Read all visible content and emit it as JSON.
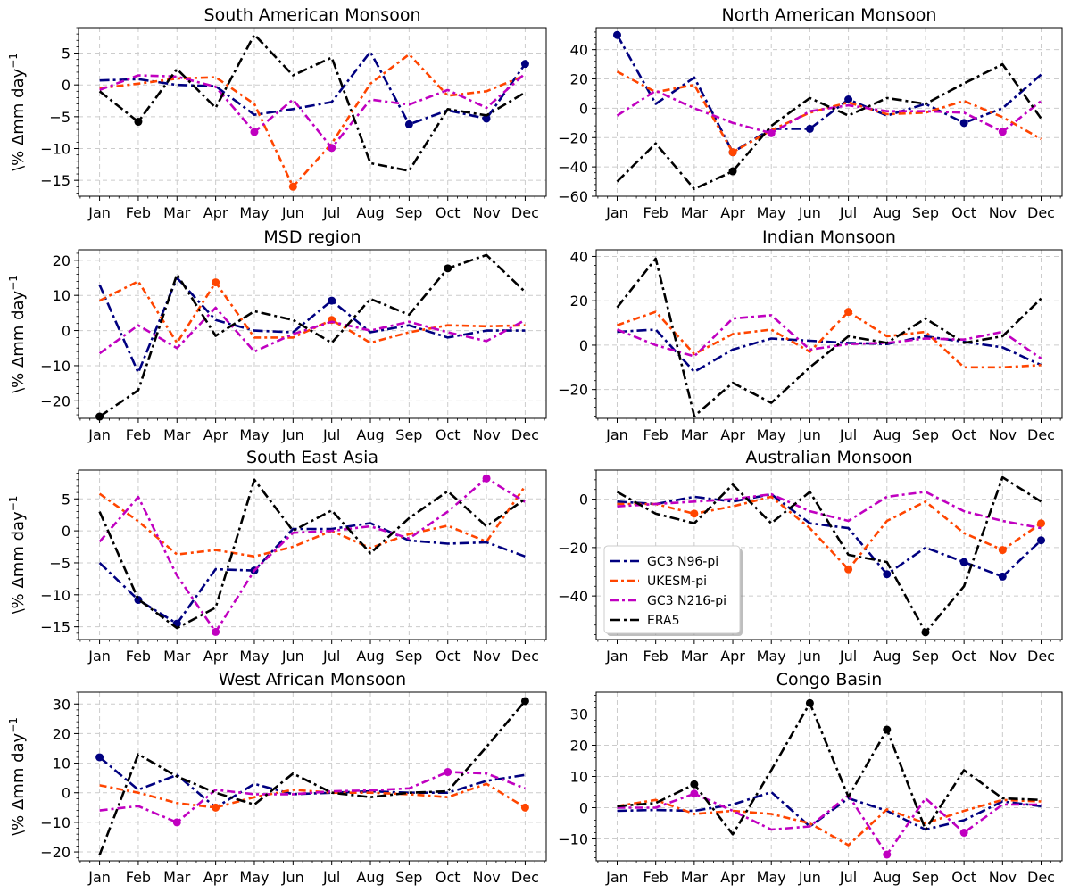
{
  "months": [
    "Jan",
    "Feb",
    "Mar",
    "Apr",
    "May",
    "Jun",
    "Jul",
    "Aug",
    "Sep",
    "Oct",
    "Nov",
    "Dec"
  ],
  "ylabel_prefix": "\\% Δmm day",
  "ylabel_sup": "−1",
  "legend": {
    "placement": "lower-left (Australian Monsoon panel)",
    "entries": [
      "GC3 N96-pi",
      "UKESM-pi",
      "GC3 N216-pi",
      "ERA5"
    ]
  },
  "colors": {
    "GC3 N96-pi": "#000080",
    "UKESM-pi": "#ff4500",
    "GC3 N216-pi": "#c000c0",
    "ERA5": "#000000"
  },
  "chart_data": [
    {
      "type": "line",
      "title": "South American Monsoon",
      "ylim": [
        -17.5,
        9
      ],
      "yticks": [
        -15,
        -10,
        -5,
        0,
        5
      ],
      "grid": true,
      "series": [
        {
          "name": "GC3 N96-pi",
          "values": [
            0.7,
            0.9,
            0,
            -0.2,
            -4.7,
            -3.8,
            -2.7,
            5.2,
            -6.2,
            -4,
            -5.3,
            3.3
          ],
          "markers": [
            8,
            10,
            11
          ]
        },
        {
          "name": "UKESM-pi",
          "values": [
            -0.5,
            0.2,
            1,
            1.2,
            -3,
            -16,
            -9.2,
            0.2,
            4.8,
            -1.7,
            -1,
            1.5
          ],
          "markers": [
            5
          ]
        },
        {
          "name": "GC3 N216-pi",
          "values": [
            -0.8,
            1.5,
            1.3,
            -0.3,
            -7.4,
            -2.3,
            -9.9,
            -2.3,
            -3.1,
            -0.8,
            -3.6,
            1.8
          ],
          "markers": [
            4,
            6
          ]
        },
        {
          "name": "ERA5",
          "values": [
            -1,
            -5.8,
            2.5,
            -3.6,
            7.9,
            1.5,
            4.3,
            -12.3,
            -13.5,
            -3.8,
            -4.8,
            -1.2
          ],
          "markers": [
            1
          ]
        }
      ]
    },
    {
      "type": "line",
      "title": "North American Monsoon",
      "ylim": [
        -60,
        55
      ],
      "yticks": [
        -60,
        -40,
        -20,
        0,
        20,
        40
      ],
      "grid": true,
      "series": [
        {
          "name": "GC3 N96-pi",
          "values": [
            50,
            3,
            21,
            -30,
            -14,
            -14,
            6,
            -5,
            3,
            -10,
            0,
            23
          ],
          "markers": [
            0,
            3,
            5,
            6,
            9
          ]
        },
        {
          "name": "UKESM-pi",
          "values": [
            25,
            11,
            16,
            -30,
            -15,
            -3,
            4,
            -4,
            -3,
            5,
            -6,
            -21
          ],
          "markers": [
            3
          ]
        },
        {
          "name": "GC3 N216-pi",
          "values": [
            -5,
            12,
            0,
            -10,
            -17,
            -2,
            2,
            -2,
            -2,
            -3,
            -16,
            5
          ],
          "markers": [
            4,
            10
          ]
        },
        {
          "name": "ERA5",
          "values": [
            -50,
            -24,
            -55,
            -43,
            -12,
            7,
            -5,
            7,
            3,
            17,
            30,
            -7
          ],
          "markers": [
            3
          ]
        }
      ]
    },
    {
      "type": "line",
      "title": "MSD region",
      "ylim": [
        -25,
        23
      ],
      "yticks": [
        -20,
        -10,
        0,
        10,
        20
      ],
      "grid": true,
      "series": [
        {
          "name": "GC3 N96-pi",
          "values": [
            13,
            -12,
            15,
            3,
            0,
            -0.5,
            8.5,
            -0.5,
            1.5,
            -2,
            0,
            0
          ],
          "markers": [
            6
          ]
        },
        {
          "name": "UKESM-pi",
          "values": [
            8.5,
            14,
            -3.5,
            13.7,
            -2,
            -2,
            3,
            -3.5,
            -0.5,
            1.5,
            1.2,
            1.5
          ],
          "markers": [
            3,
            6
          ]
        },
        {
          "name": "GC3 N216-pi",
          "values": [
            -6.5,
            1.5,
            -5,
            6.5,
            -6,
            -1,
            2.5,
            0,
            2.5,
            -0.5,
            -3,
            3
          ],
          "markers": []
        },
        {
          "name": "ERA5",
          "values": [
            -24.5,
            -17,
            16,
            -1.5,
            5.5,
            3,
            -3.5,
            9,
            4.5,
            17.7,
            21.5,
            11
          ],
          "markers": [
            0,
            9
          ]
        }
      ]
    },
    {
      "type": "line",
      "title": "Indian Monsoon",
      "ylim": [
        -33,
        43
      ],
      "yticks": [
        -20,
        0,
        20,
        40
      ],
      "grid": true,
      "series": [
        {
          "name": "GC3 N96-pi",
          "values": [
            6,
            7,
            -12,
            -2,
            3,
            2,
            1,
            0.5,
            4,
            1.5,
            -1,
            -9
          ],
          "markers": []
        },
        {
          "name": "UKESM-pi",
          "values": [
            9,
            15,
            -4,
            5,
            7,
            -3,
            15,
            4,
            6,
            -10,
            -10,
            -9
          ],
          "markers": [
            6
          ]
        },
        {
          "name": "GC3 N216-pi",
          "values": [
            7,
            0,
            -5,
            12,
            13.5,
            -2,
            0.5,
            1,
            3,
            2.5,
            6,
            -6
          ],
          "markers": []
        },
        {
          "name": "ERA5",
          "values": [
            17,
            39,
            -32,
            -17,
            -26,
            -10,
            4,
            1,
            12,
            1,
            4,
            21
          ],
          "markers": []
        }
      ]
    },
    {
      "type": "line",
      "title": "South East Asia",
      "ylim": [
        -17,
        9.5
      ],
      "yticks": [
        -15,
        -10,
        -5,
        0,
        5
      ],
      "grid": true,
      "series": [
        {
          "name": "GC3 N96-pi",
          "values": [
            -5,
            -10.8,
            -14.5,
            -6,
            -6.2,
            0.3,
            0.3,
            1.2,
            -1.5,
            -2,
            -1.8,
            -4
          ],
          "markers": [
            1,
            2,
            4
          ]
        },
        {
          "name": "UKESM-pi",
          "values": [
            5.8,
            1.5,
            -3.7,
            -3,
            -4,
            -2.5,
            0,
            -2.7,
            -0.5,
            0.8,
            -1.7,
            7
          ],
          "markers": []
        },
        {
          "name": "GC3 N216-pi",
          "values": [
            -1.7,
            5.3,
            -7,
            -15.8,
            -6.2,
            -0.3,
            0,
            0.7,
            -1.2,
            3,
            8.2,
            4.5
          ],
          "markers": [
            3,
            10
          ]
        },
        {
          "name": "ERA5",
          "values": [
            3,
            -10.7,
            -15.2,
            -12,
            8,
            0,
            3.2,
            -3.5,
            2,
            6.2,
            0.7,
            5
          ],
          "markers": []
        }
      ]
    },
    {
      "type": "line",
      "title": "Australian Monsoon",
      "ylim": [
        -58,
        12
      ],
      "yticks": [
        -40,
        -20,
        0
      ],
      "grid": true,
      "series": [
        {
          "name": "GC3 N96-pi",
          "values": [
            -1,
            -2,
            1,
            -1,
            2,
            -10,
            -12,
            -31,
            -20,
            -26,
            -32,
            -17
          ],
          "markers": [
            7,
            9,
            10,
            11
          ]
        },
        {
          "name": "UKESM-pi",
          "values": [
            -2,
            -2,
            -6,
            -3,
            1,
            -12,
            -29,
            -9,
            -1,
            -14,
            -21,
            -10
          ],
          "markers": [
            2,
            6,
            10,
            11
          ]
        },
        {
          "name": "GC3 N216-pi",
          "values": [
            -3,
            -2,
            -1,
            0,
            2,
            -5,
            -9,
            1,
            3,
            -5,
            -9,
            -12
          ],
          "markers": []
        },
        {
          "name": "ERA5",
          "values": [
            3,
            -6,
            -10,
            6,
            -10,
            3,
            -23,
            -26,
            -55,
            -36,
            9,
            -1
          ],
          "markers": [
            8
          ]
        }
      ]
    },
    {
      "type": "line",
      "title": "West African Monsoon",
      "ylim": [
        -23,
        34
      ],
      "yticks": [
        -20,
        -10,
        0,
        10,
        20,
        30
      ],
      "grid": true,
      "series": [
        {
          "name": "GC3 N96-pi",
          "values": [
            12,
            1,
            6,
            -5,
            3,
            -0.5,
            0,
            0.5,
            0,
            0,
            4,
            6
          ],
          "markers": [
            0
          ]
        },
        {
          "name": "UKESM-pi",
          "values": [
            2.5,
            0,
            -3.5,
            -5,
            -1.5,
            1,
            0,
            0,
            -0.5,
            -1.5,
            3,
            -5
          ],
          "markers": [
            3,
            11
          ]
        },
        {
          "name": "GC3 N216-pi",
          "values": [
            -6,
            -4.5,
            -10,
            1,
            -0.5,
            -0.5,
            0.5,
            0.8,
            1.5,
            7,
            6.5,
            1.5
          ],
          "markers": [
            2,
            9
          ]
        },
        {
          "name": "ERA5",
          "values": [
            -21,
            13,
            5.5,
            0,
            -4,
            6.5,
            0,
            -1.5,
            0,
            0.5,
            15.5,
            31
          ],
          "markers": [
            11
          ]
        }
      ]
    },
    {
      "type": "line",
      "title": "Congo Basin",
      "ylim": [
        -17,
        37
      ],
      "yticks": [
        -10,
        0,
        10,
        20,
        30
      ],
      "grid": true,
      "series": [
        {
          "name": "GC3 N96-pi",
          "values": [
            -1,
            -0.7,
            -1,
            1,
            5,
            -6,
            3,
            -1,
            -7,
            -4,
            2,
            0.5
          ],
          "markers": []
        },
        {
          "name": "UKESM-pi",
          "values": [
            0.5,
            2.5,
            -2,
            -1,
            -2,
            -5,
            -12,
            -0.5,
            -5,
            -1,
            2.5,
            2
          ],
          "markers": []
        },
        {
          "name": "GC3 N216-pi",
          "values": [
            0,
            0,
            4.5,
            -1,
            -7,
            -6,
            4,
            -15,
            3,
            -8,
            1,
            1
          ],
          "markers": [
            2,
            9,
            7
          ]
        },
        {
          "name": "ERA5",
          "values": [
            0.5,
            1.5,
            7.5,
            -8.5,
            12,
            33.5,
            3.5,
            25,
            -7,
            12,
            3,
            2.5
          ],
          "markers": [
            2,
            5,
            7
          ]
        }
      ]
    }
  ]
}
